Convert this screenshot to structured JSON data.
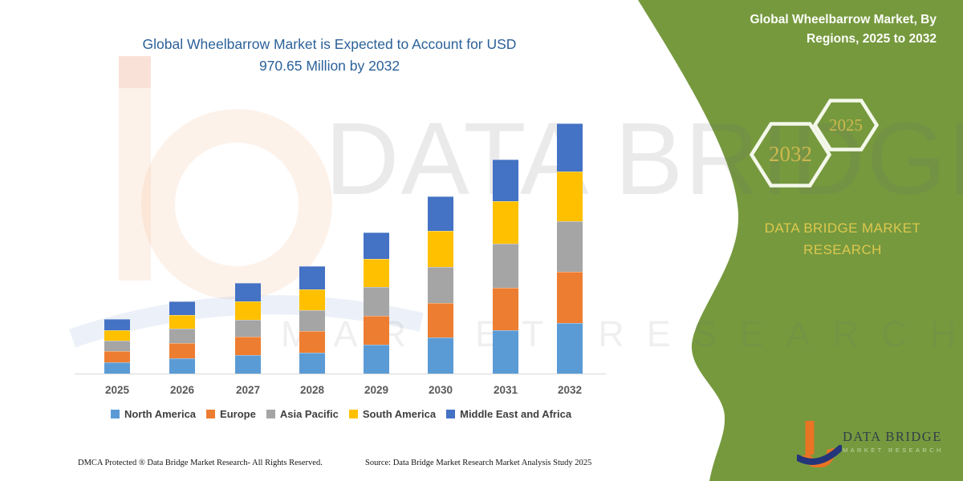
{
  "chart": {
    "title_line1": "Global Wheelbarrow Market is Expected to Account for USD",
    "title_line2": "970.65 Million by 2032",
    "title_color": "#2B6199"
  },
  "chart_data": {
    "type": "bar",
    "stacked": true,
    "title": "Global Wheelbarrow Market is Expected to Account for USD 970.65 Million by 2032",
    "unit": "USD Million",
    "xlabel": "",
    "ylabel": "",
    "grid": false,
    "legend_position": "bottom",
    "categories": [
      "2025",
      "2026",
      "2027",
      "2028",
      "2029",
      "2030",
      "2031",
      "2032"
    ],
    "series": [
      {
        "name": "North America",
        "color": "#5B9BD5",
        "values": [
          43.6,
          60.4,
          72.9,
          82.2,
          113.3,
          140.1,
          168.2,
          197.5
        ]
      },
      {
        "name": "Europe",
        "color": "#ED7D31",
        "values": [
          44.5,
          59.2,
          69.4,
          83.1,
          112.1,
          134.8,
          164.1,
          197.1
        ]
      },
      {
        "name": "Asia Pacific",
        "color": "#A5A5A5",
        "values": [
          39.5,
          55.1,
          67.6,
          81.0,
          112.1,
          140.1,
          171.3,
          197.1
        ]
      },
      {
        "name": "South America",
        "color": "#FFC000",
        "values": [
          40.5,
          52.0,
          70.7,
          81.0,
          107.7,
          140.1,
          166.0,
          192.2
        ]
      },
      {
        "name": "Middle East and Africa",
        "color": "#4472C4",
        "values": [
          44.8,
          53.9,
          70.7,
          90.3,
          104.0,
          132.0,
          161.0,
          186.8
        ]
      }
    ],
    "totals_estimated": [
      212.9,
      280.6,
      351.3,
      417.6,
      549.2,
      687.1,
      830.6,
      970.65
    ],
    "annotation": "Total for 2032 stated as USD 970.65 Million"
  },
  "side_panel": {
    "background": "#76993E",
    "title_line1": "Global Wheelbarrow Market, By",
    "title_line2": "Regions, 2025 to 2032",
    "hexagon_large_label": "2032",
    "hexagon_small_label": "2025",
    "brand_line1": "DATA BRIDGE MARKET",
    "brand_line2": "RESEARCH",
    "accent_text_color": "#DCC84E"
  },
  "watermark": {
    "line1": "DATA BRIDGE",
    "line2": "MARKET RESEARCH"
  },
  "logo": {
    "brand": "DATA BRIDGE",
    "sub": "MARKET RESEARCH"
  },
  "footer": {
    "left": "DMCA Protected ® Data Bridge Market Research-  All Rights Reserved.",
    "source": "Source: Data Bridge Market Research  Market Analysis Study 2025"
  }
}
